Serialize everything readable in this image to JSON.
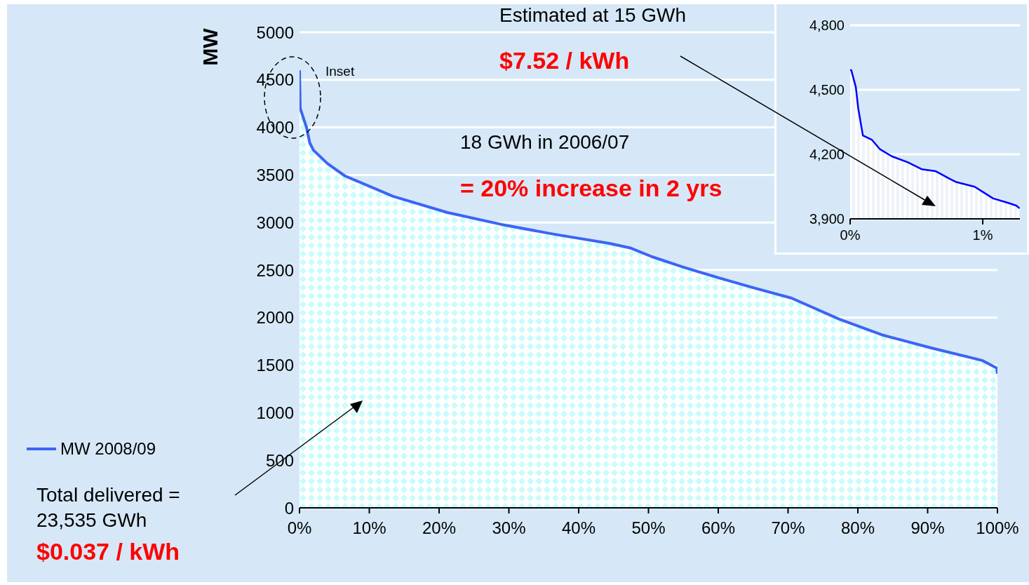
{
  "chart_data": [
    {
      "type": "area",
      "ylabel": "MW",
      "legend": "bottom left",
      "grid": "y",
      "x": [
        0,
        0.1,
        1,
        1.46,
        2,
        4,
        6.5,
        13.4,
        21.2,
        28.9,
        36.6,
        44.4,
        47.5,
        50.5,
        55,
        60,
        65,
        70.5,
        77.3,
        83.4,
        90.6,
        97.8,
        99.9,
        100
      ],
      "series": [
        {
          "name": "MW 2008/09",
          "color": "#3c64f5",
          "values": [
            4600,
            4200,
            4000,
            3840,
            3760,
            3620,
            3490,
            3275,
            3105,
            2980,
            2875,
            2780,
            2730,
            2640,
            2530,
            2420,
            2315,
            2205,
            1985,
            1820,
            1680,
            1550,
            1470,
            1410
          ]
        }
      ],
      "xlim": [
        0,
        100
      ],
      "xticks": [
        {
          "value": 0,
          "label": "0%"
        },
        {
          "value": 10,
          "label": "10%"
        },
        {
          "value": 20,
          "label": "20%"
        },
        {
          "value": 30,
          "label": "30%"
        },
        {
          "value": 40,
          "label": "40%"
        },
        {
          "value": 50,
          "label": "50%"
        },
        {
          "value": 60,
          "label": "60%"
        },
        {
          "value": 70,
          "label": "70%"
        },
        {
          "value": 80,
          "label": "80%"
        },
        {
          "value": 90,
          "label": "90%"
        },
        {
          "value": 100,
          "label": "100%"
        }
      ],
      "ylim": [
        0,
        5000
      ],
      "yticks": [
        0,
        500,
        1000,
        1500,
        2000,
        2500,
        3000,
        3500,
        4000,
        4500,
        5000
      ],
      "annotations": [
        "Estimated at 15 GWh",
        "$7.52 / kWh",
        "18 GWh in 2006/07",
        "= 20% increase in 2 yrs",
        "Total delivered =\n23,535 GWh",
        "$0.037 / kWh",
        "Inset"
      ]
    },
    {
      "type": "area",
      "grid": "y",
      "x": [
        0,
        0.009,
        0.043,
        0.061,
        0.096,
        0.165,
        0.226,
        0.313,
        0.435,
        0.539,
        0.643,
        0.748,
        0.8,
        0.939,
        1.009,
        1.078,
        1.183,
        1.252,
        1.278
      ],
      "series": [
        {
          "color": "#0000ff",
          "values": [
            4591,
            4591,
            4512,
            4414,
            4288,
            4267,
            4223,
            4191,
            4163,
            4131,
            4122,
            4087,
            4071,
            4049,
            4022,
            3995,
            3976,
            3962,
            3949
          ]
        }
      ],
      "xlim": [
        0,
        1.28
      ],
      "xticks": [
        {
          "value": 0,
          "label": "0%"
        },
        {
          "value": 1,
          "label": "1%"
        }
      ],
      "ylim": [
        3900,
        4800
      ],
      "yticks": [
        {
          "value": 3900,
          "label": "3,900"
        },
        {
          "value": 4200,
          "label": "4,200"
        },
        {
          "value": 4500,
          "label": "4,500"
        },
        {
          "value": 4800,
          "label": "4,800"
        }
      ]
    }
  ]
}
